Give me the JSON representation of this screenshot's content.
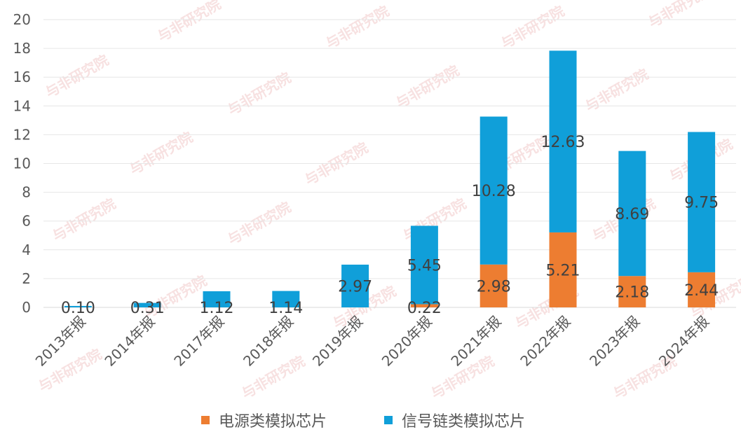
{
  "chart_data": {
    "type": "bar",
    "stacked": true,
    "categories": [
      "2013年报",
      "2014年报",
      "2017年报",
      "2018年报",
      "2019年报",
      "2020年报",
      "2021年报",
      "2022年报",
      "2023年报",
      "2024年报"
    ],
    "series": [
      {
        "name": "电源类模拟芯片",
        "color": "#ed7d31",
        "values": [
          0,
          0,
          0,
          0,
          0,
          0.22,
          2.98,
          5.21,
          2.18,
          2.44
        ],
        "labels": [
          "",
          "",
          "",
          "",
          "",
          "0.22",
          "2.98",
          "5.21",
          "2.18",
          "2.44"
        ]
      },
      {
        "name": "信号链类模拟芯片",
        "color": "#109fd9",
        "values": [
          0.1,
          0.31,
          1.12,
          1.14,
          2.97,
          5.45,
          10.28,
          12.63,
          8.69,
          9.75
        ],
        "labels": [
          "0.10",
          "0.31",
          "1.12",
          "1.14",
          "2.97",
          "5.45",
          "10.28",
          "12.63",
          "8.69",
          "9.75"
        ]
      }
    ],
    "ylim": [
      0,
      20
    ],
    "yticks": [
      0,
      2,
      4,
      6,
      8,
      10,
      12,
      14,
      16,
      18,
      20
    ],
    "xlabel": "",
    "ylabel": "",
    "title": "",
    "grid": "horizontal",
    "legend": "bottom-center"
  },
  "watermark": {
    "text": "与非研究院"
  }
}
